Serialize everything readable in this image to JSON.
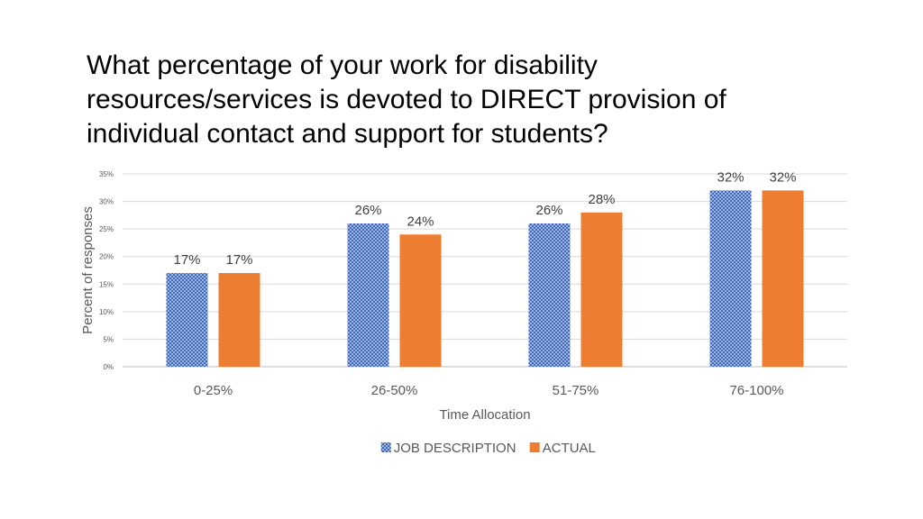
{
  "slide": {
    "title_lines": [
      "What percentage of your work for disability",
      "resources/services is devoted to DIRECT provision of",
      "individual contact and support for students?"
    ]
  },
  "chart_data": {
    "type": "bar",
    "title": "",
    "xlabel": "Time Allocation",
    "ylabel": "Percent of responses",
    "categories": [
      "0-25%",
      "26-50%",
      "51-75%",
      "76-100%"
    ],
    "series": [
      {
        "name": "JOB DESCRIPTION",
        "values": [
          17,
          26,
          26,
          32
        ],
        "color": "#4472C4",
        "pattern": "checker"
      },
      {
        "name": "ACTUAL",
        "values": [
          17,
          24,
          28,
          32
        ],
        "color": "#ED7D31"
      }
    ],
    "data_labels": [
      [
        "17%",
        "26%",
        "26%",
        "32%"
      ],
      [
        "17%",
        "24%",
        "28%",
        "32%"
      ]
    ],
    "yticks": [
      "0%",
      "5%",
      "10%",
      "15%",
      "20%",
      "25%",
      "30%",
      "35%"
    ],
    "ylim": [
      0,
      35
    ],
    "grid": true,
    "legend": "bottom-center"
  }
}
